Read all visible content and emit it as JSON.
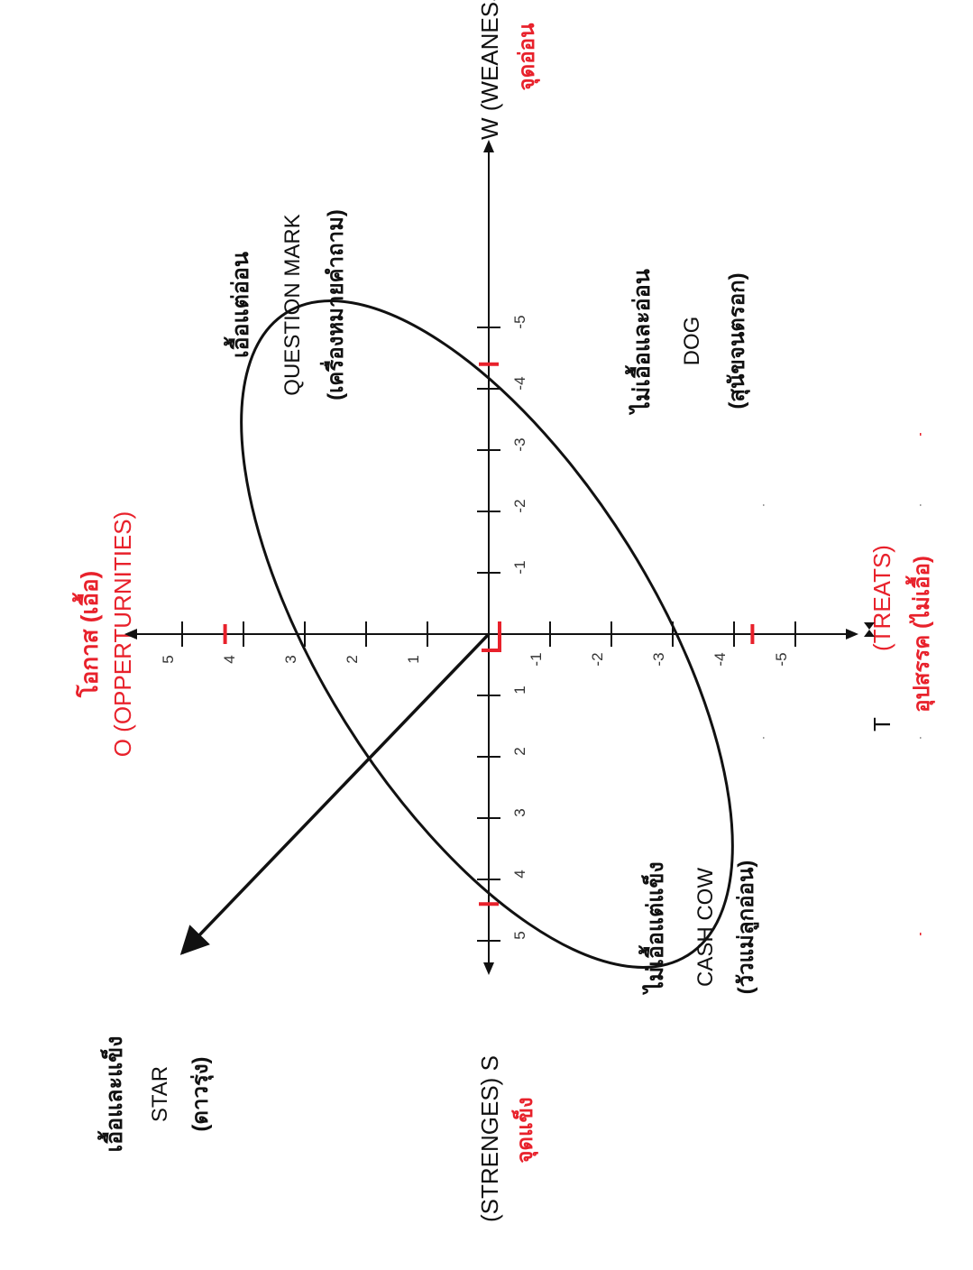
{
  "title": {
    "thai": "โอกาส (เอื้อ)",
    "english": "O (OPPERTURNITIES)"
  },
  "axes": {
    "left_label": "(STRENGES) S",
    "left_thai": "จุดแข็ง",
    "right_label": "W (WEANESSES)",
    "right_thai": "จุดอ่อน",
    "bottom_label_t": "T",
    "bottom_label_treats": "(TREATS)",
    "bottom_thai": "อุปสรรค (ไม่เอื้อ)",
    "h_ticks": [
      {
        "label": "5",
        "x": -5
      },
      {
        "label": "4",
        "x": -4
      },
      {
        "label": "3",
        "x": -3
      },
      {
        "label": "2",
        "x": -2
      },
      {
        "label": "1",
        "x": -1
      },
      {
        "label": "-1",
        "x": 1
      },
      {
        "label": "-2",
        "x": 2
      },
      {
        "label": "-3",
        "x": 3
      },
      {
        "label": "-4",
        "x": 4
      },
      {
        "label": "-5",
        "x": 5
      }
    ],
    "v_ticks": [
      {
        "label": "5",
        "y": 5
      },
      {
        "label": "4",
        "y": 4
      },
      {
        "label": "3",
        "y": 3
      },
      {
        "label": "2",
        "y": 2
      },
      {
        "label": "1",
        "y": 1
      },
      {
        "label": "-1",
        "y": -1
      },
      {
        "label": "-2",
        "y": -2
      },
      {
        "label": "-3",
        "y": -3
      },
      {
        "label": "-4",
        "y": -4
      },
      {
        "label": "-5",
        "y": -5
      }
    ]
  },
  "quadrants": {
    "star": {
      "line1": "เอื้อและแข็ง",
      "line2": "STAR",
      "line3": "(ดาวรุ่ง)"
    },
    "question_mark": {
      "line1": "เอื้อแต่อ่อน",
      "line2": "QUESTION  MARK",
      "line3": "(เครื่องหมายคำถาม)"
    },
    "cash_cow": {
      "line1": "ไม่เอื้อแต่แข็ง",
      "line2": "CASH  COW",
      "line3": "(วัวแม่ลูกอ่อน)"
    },
    "dog": {
      "line1": "ไม่เอื้อและอ่อน",
      "line2": "DOG",
      "line3": "(สุนัขจนตรอก)"
    }
  },
  "markers": [
    {
      "x": 0,
      "y": 4.3
    },
    {
      "x": -4.4,
      "y": 0
    },
    {
      "x": 4.4,
      "y": 0
    },
    {
      "x": 0,
      "y": -4.3
    }
  ],
  "vector": {
    "to_x": -5.2,
    "to_y": 5
  },
  "colors": {
    "accent": "#e8212b",
    "ink": "#111111"
  }
}
